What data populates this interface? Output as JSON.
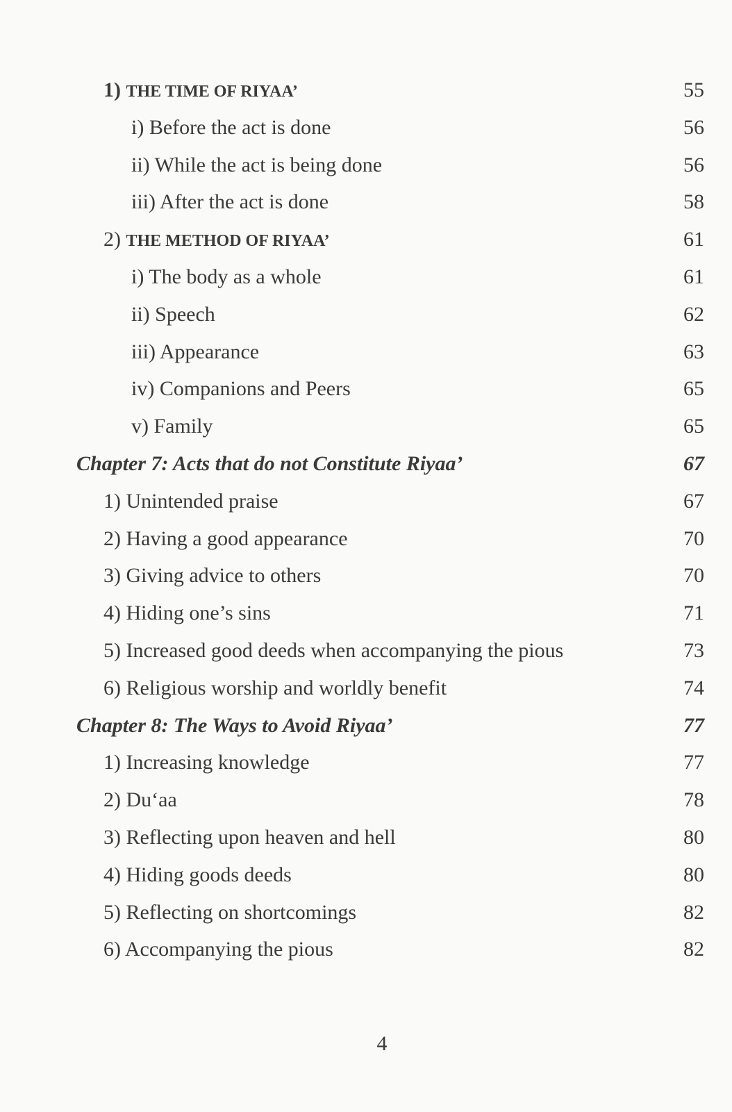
{
  "entries": [
    {
      "level": "section",
      "number": "1)",
      "title": "THE TIME OF RIYAA’",
      "page": "55"
    },
    {
      "level": "sub",
      "title": "i) Before the act is done",
      "page": "56"
    },
    {
      "level": "sub",
      "title": "ii) While the act is being done",
      "page": "56"
    },
    {
      "level": "sub",
      "title": "iii) After the act is done",
      "page": "58"
    },
    {
      "level": "section",
      "number": "2)",
      "title": "THE METHOD OF RIYAA’",
      "page": "61"
    },
    {
      "level": "sub",
      "title": "i) The body as a whole",
      "page": "61"
    },
    {
      "level": "sub",
      "title": "ii) Speech",
      "page": "62"
    },
    {
      "level": "sub",
      "title": "iii) Appearance",
      "page": "63"
    },
    {
      "level": "sub",
      "title": "iv) Companions and Peers",
      "page": "65"
    },
    {
      "level": "sub",
      "title": "v) Family",
      "page": "65"
    },
    {
      "level": "chapter",
      "title": "Chapter 7: Acts that do not Constitute Riyaa’",
      "page": "67"
    },
    {
      "level": "item",
      "title": "1) Unintended praise",
      "page": "67"
    },
    {
      "level": "item",
      "title": "2) Having a good appearance",
      "page": "70"
    },
    {
      "level": "item",
      "title": "3) Giving advice to others",
      "page": "70"
    },
    {
      "level": "item",
      "title": "4) Hiding one’s sins",
      "page": "71"
    },
    {
      "level": "item",
      "title": "5) Increased good deeds when accompanying the pious",
      "page": "73"
    },
    {
      "level": "item",
      "title": "6) Religious worship and worldly benefit",
      "page": "74"
    },
    {
      "level": "chapter",
      "title": "Chapter 8: The Ways to Avoid Riyaa’",
      "page": "77"
    },
    {
      "level": "item",
      "title": "1) Increasing knowledge",
      "page": "77"
    },
    {
      "level": "item",
      "title": "2) Du‘aa",
      "page": "78"
    },
    {
      "level": "item",
      "title": "3) Reflecting upon heaven and hell",
      "page": "80"
    },
    {
      "level": "item",
      "title": "4) Hiding goods deeds",
      "page": "80"
    },
    {
      "level": "item",
      "title": "5) Reflecting on shortcomings",
      "page": "82"
    },
    {
      "level": "item",
      "title": "6) Accompanying the pious",
      "page": "82"
    }
  ],
  "folio": "4"
}
